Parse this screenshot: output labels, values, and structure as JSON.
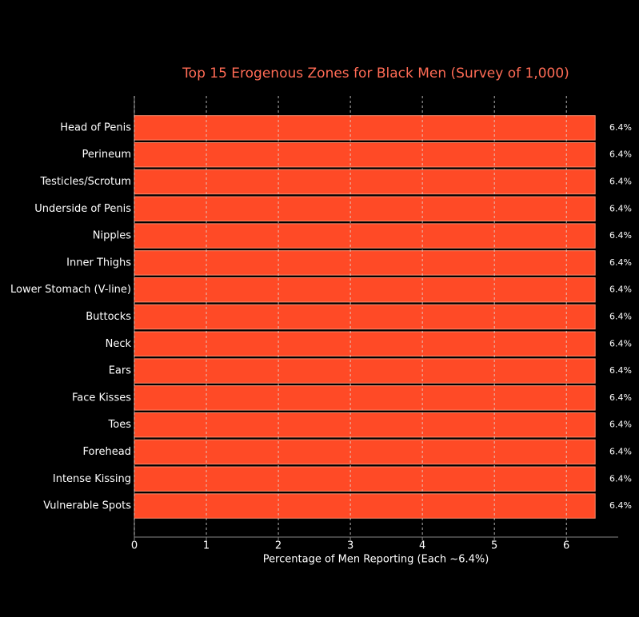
{
  "chart_data": {
    "type": "barh",
    "title": "Top 15 Erogenous Zones for Black Men (Survey of 1,000)",
    "xlabel": "Percentage of Men Reporting (Each ~6.4%)",
    "categories": [
      "Head of Penis",
      "Perineum",
      "Testicles/Scrotum",
      "Underside of Penis",
      "Nipples",
      "Inner Thighs",
      "Lower Stomach (V-line)",
      "Buttocks",
      "Neck",
      "Ears",
      "Face Kisses",
      "Toes",
      "Forehead",
      "Intense Kissing",
      "Vulnerable Spots"
    ],
    "values": [
      6.4,
      6.4,
      6.4,
      6.4,
      6.4,
      6.4,
      6.4,
      6.4,
      6.4,
      6.4,
      6.4,
      6.4,
      6.4,
      6.4,
      6.4
    ],
    "value_labels": [
      "6.4%",
      "6.4%",
      "6.4%",
      "6.4%",
      "6.4%",
      "6.4%",
      "6.4%",
      "6.4%",
      "6.4%",
      "6.4%",
      "6.4%",
      "6.4%",
      "6.4%",
      "6.4%",
      "6.4%"
    ],
    "color": "#ff4a26",
    "xlim": [
      0,
      6.72
    ],
    "xticks": [
      0,
      1,
      2,
      3,
      4,
      5,
      6
    ],
    "grid": true
  }
}
